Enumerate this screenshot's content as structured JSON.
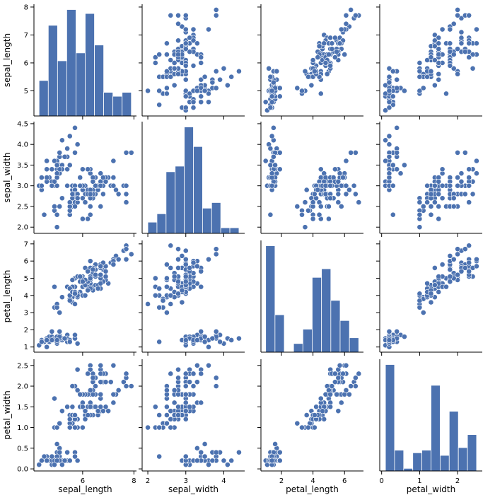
{
  "chart_data": {
    "type": "pairplot",
    "title": "",
    "variables": [
      "sepal_length",
      "sepal_width",
      "petal_length",
      "petal_width"
    ],
    "color": "#4c72b0",
    "point_edge_color": "#ffffff",
    "axes": {
      "sepal_length": {
        "label": "sepal_length",
        "lim": [
          4.1,
          8.1
        ],
        "ticks": [
          5,
          6,
          7,
          8
        ],
        "x_ticks": [
          6,
          8
        ]
      },
      "sepal_width": {
        "label": "sepal_width",
        "lim": [
          1.85,
          4.55
        ],
        "ticks": [
          2.0,
          2.5,
          3.0,
          3.5,
          4.0,
          4.5
        ],
        "x_ticks": [
          2,
          3,
          4
        ]
      },
      "petal_length": {
        "label": "petal_length",
        "lim": [
          0.7,
          7.2
        ],
        "ticks": [
          1,
          2,
          3,
          4,
          5,
          6,
          7
        ],
        "x_ticks": [
          2,
          4,
          6
        ]
      },
      "petal_width": {
        "label": "petal_width",
        "lim": [
          -0.05,
          2.65
        ],
        "ticks": [
          0.0,
          0.5,
          1.0,
          1.5,
          2.0,
          2.5
        ],
        "x_ticks": [
          0,
          1,
          2
        ]
      }
    },
    "histograms": {
      "sepal_length": {
        "edges": [
          4.3,
          4.66,
          5.02,
          5.38,
          5.74,
          6.1,
          6.46,
          6.82,
          7.18,
          7.54,
          7.9
        ],
        "counts": [
          9,
          23,
          14,
          27,
          16,
          26,
          18,
          6,
          5,
          6
        ]
      },
      "sepal_width": {
        "edges": [
          2.0,
          2.24,
          2.48,
          2.72,
          2.96,
          3.2,
          3.44,
          3.68,
          3.92,
          4.16,
          4.4
        ],
        "counts": [
          4,
          7,
          22,
          24,
          38,
          31,
          9,
          11,
          2,
          2
        ]
      },
      "petal_length": {
        "edges": [
          1.0,
          1.59,
          2.18,
          2.77,
          3.36,
          3.95,
          4.54,
          5.13,
          5.72,
          6.31,
          6.9
        ],
        "counts": [
          37,
          13,
          0,
          3,
          8,
          26,
          29,
          18,
          11,
          5
        ]
      },
      "petal_width": {
        "edges": [
          0.1,
          0.34,
          0.58,
          0.82,
          1.06,
          1.3,
          1.54,
          1.78,
          2.02,
          2.26,
          2.5
        ],
        "counts": [
          41,
          8,
          1,
          7,
          8,
          33,
          6,
          23,
          9,
          14
        ]
      }
    },
    "points": [
      [
        5.1,
        3.5,
        1.4,
        0.2
      ],
      [
        4.9,
        3.0,
        1.4,
        0.2
      ],
      [
        4.7,
        3.2,
        1.3,
        0.2
      ],
      [
        4.6,
        3.1,
        1.5,
        0.2
      ],
      [
        5.0,
        3.6,
        1.4,
        0.2
      ],
      [
        5.4,
        3.9,
        1.7,
        0.4
      ],
      [
        4.6,
        3.4,
        1.4,
        0.3
      ],
      [
        5.0,
        3.4,
        1.5,
        0.2
      ],
      [
        4.4,
        2.9,
        1.4,
        0.2
      ],
      [
        4.9,
        3.1,
        1.5,
        0.1
      ],
      [
        5.4,
        3.7,
        1.5,
        0.2
      ],
      [
        4.8,
        3.4,
        1.6,
        0.2
      ],
      [
        4.8,
        3.0,
        1.4,
        0.1
      ],
      [
        4.3,
        3.0,
        1.1,
        0.1
      ],
      [
        5.8,
        4.0,
        1.2,
        0.2
      ],
      [
        5.7,
        4.4,
        1.5,
        0.4
      ],
      [
        5.4,
        3.9,
        1.3,
        0.4
      ],
      [
        5.1,
        3.5,
        1.4,
        0.3
      ],
      [
        5.7,
        3.8,
        1.7,
        0.3
      ],
      [
        5.1,
        3.8,
        1.5,
        0.3
      ],
      [
        5.4,
        3.4,
        1.7,
        0.2
      ],
      [
        5.1,
        3.7,
        1.5,
        0.4
      ],
      [
        4.6,
        3.6,
        1.0,
        0.2
      ],
      [
        5.1,
        3.3,
        1.7,
        0.5
      ],
      [
        4.8,
        3.4,
        1.9,
        0.2
      ],
      [
        5.0,
        3.0,
        1.6,
        0.2
      ],
      [
        5.0,
        3.4,
        1.6,
        0.4
      ],
      [
        5.2,
        3.5,
        1.5,
        0.2
      ],
      [
        5.2,
        3.4,
        1.4,
        0.2
      ],
      [
        4.7,
        3.2,
        1.6,
        0.2
      ],
      [
        4.8,
        3.1,
        1.6,
        0.2
      ],
      [
        5.4,
        3.4,
        1.5,
        0.4
      ],
      [
        5.2,
        4.1,
        1.5,
        0.1
      ],
      [
        5.5,
        4.2,
        1.4,
        0.2
      ],
      [
        4.9,
        3.1,
        1.5,
        0.2
      ],
      [
        5.0,
        3.2,
        1.2,
        0.2
      ],
      [
        5.5,
        3.5,
        1.3,
        0.2
      ],
      [
        4.9,
        3.6,
        1.4,
        0.1
      ],
      [
        4.4,
        3.0,
        1.3,
        0.2
      ],
      [
        5.1,
        3.4,
        1.5,
        0.2
      ],
      [
        5.0,
        3.5,
        1.3,
        0.3
      ],
      [
        4.5,
        2.3,
        1.3,
        0.3
      ],
      [
        4.4,
        3.2,
        1.3,
        0.2
      ],
      [
        5.0,
        3.5,
        1.6,
        0.6
      ],
      [
        5.1,
        3.8,
        1.9,
        0.4
      ],
      [
        4.8,
        3.0,
        1.4,
        0.3
      ],
      [
        5.1,
        3.8,
        1.6,
        0.2
      ],
      [
        4.6,
        3.2,
        1.4,
        0.2
      ],
      [
        5.3,
        3.7,
        1.5,
        0.2
      ],
      [
        5.0,
        3.3,
        1.4,
        0.2
      ],
      [
        7.0,
        3.2,
        4.7,
        1.4
      ],
      [
        6.4,
        3.2,
        4.5,
        1.5
      ],
      [
        6.9,
        3.1,
        4.9,
        1.5
      ],
      [
        5.5,
        2.3,
        4.0,
        1.3
      ],
      [
        6.5,
        2.8,
        4.6,
        1.5
      ],
      [
        5.7,
        2.8,
        4.5,
        1.3
      ],
      [
        6.3,
        3.3,
        4.7,
        1.6
      ],
      [
        4.9,
        2.4,
        3.3,
        1.0
      ],
      [
        6.6,
        2.9,
        4.6,
        1.3
      ],
      [
        5.2,
        2.7,
        3.9,
        1.4
      ],
      [
        5.0,
        2.0,
        3.5,
        1.0
      ],
      [
        5.9,
        3.0,
        4.2,
        1.5
      ],
      [
        6.0,
        2.2,
        4.0,
        1.0
      ],
      [
        6.1,
        2.9,
        4.7,
        1.4
      ],
      [
        5.6,
        2.9,
        3.6,
        1.3
      ],
      [
        6.7,
        3.1,
        4.4,
        1.4
      ],
      [
        5.6,
        3.0,
        4.5,
        1.5
      ],
      [
        5.8,
        2.7,
        4.1,
        1.0
      ],
      [
        6.2,
        2.2,
        4.5,
        1.5
      ],
      [
        5.6,
        2.5,
        3.9,
        1.1
      ],
      [
        5.9,
        3.2,
        4.8,
        1.8
      ],
      [
        6.1,
        2.8,
        4.0,
        1.3
      ],
      [
        6.3,
        2.5,
        4.9,
        1.5
      ],
      [
        6.1,
        2.8,
        4.7,
        1.2
      ],
      [
        6.4,
        2.9,
        4.3,
        1.3
      ],
      [
        6.6,
        3.0,
        4.4,
        1.4
      ],
      [
        6.8,
        2.8,
        4.8,
        1.4
      ],
      [
        6.7,
        3.0,
        5.0,
        1.7
      ],
      [
        6.0,
        2.9,
        4.5,
        1.5
      ],
      [
        5.7,
        2.6,
        3.5,
        1.0
      ],
      [
        5.5,
        2.4,
        3.8,
        1.1
      ],
      [
        5.5,
        2.4,
        3.7,
        1.0
      ],
      [
        5.8,
        2.7,
        3.9,
        1.2
      ],
      [
        6.0,
        2.7,
        5.1,
        1.6
      ],
      [
        5.4,
        3.0,
        4.5,
        1.5
      ],
      [
        6.0,
        3.4,
        4.5,
        1.6
      ],
      [
        6.7,
        3.1,
        4.7,
        1.5
      ],
      [
        6.3,
        2.3,
        4.4,
        1.3
      ],
      [
        5.6,
        3.0,
        4.1,
        1.3
      ],
      [
        5.5,
        2.5,
        4.0,
        1.3
      ],
      [
        5.5,
        2.6,
        4.4,
        1.2
      ],
      [
        6.1,
        3.0,
        4.6,
        1.4
      ],
      [
        5.8,
        2.6,
        4.0,
        1.2
      ],
      [
        5.0,
        2.3,
        3.3,
        1.0
      ],
      [
        5.6,
        2.7,
        4.2,
        1.3
      ],
      [
        5.7,
        3.0,
        4.2,
        1.2
      ],
      [
        5.7,
        2.9,
        4.2,
        1.3
      ],
      [
        6.2,
        2.9,
        4.3,
        1.3
      ],
      [
        5.1,
        2.5,
        3.0,
        1.1
      ],
      [
        5.7,
        2.8,
        4.1,
        1.3
      ],
      [
        6.3,
        3.3,
        6.0,
        2.5
      ],
      [
        5.8,
        2.7,
        5.1,
        1.9
      ],
      [
        7.1,
        3.0,
        5.9,
        2.1
      ],
      [
        6.3,
        2.9,
        5.6,
        1.8
      ],
      [
        6.5,
        3.0,
        5.8,
        2.2
      ],
      [
        7.6,
        3.0,
        6.6,
        2.1
      ],
      [
        4.9,
        2.5,
        4.5,
        1.7
      ],
      [
        7.3,
        2.9,
        6.3,
        1.8
      ],
      [
        6.7,
        2.5,
        5.8,
        1.8
      ],
      [
        7.2,
        3.6,
        6.1,
        2.5
      ],
      [
        6.5,
        3.2,
        5.1,
        2.0
      ],
      [
        6.4,
        2.7,
        5.3,
        1.9
      ],
      [
        6.8,
        3.0,
        5.5,
        2.1
      ],
      [
        5.7,
        2.5,
        5.0,
        2.0
      ],
      [
        5.8,
        2.8,
        5.1,
        2.4
      ],
      [
        6.4,
        3.2,
        5.3,
        2.3
      ],
      [
        6.5,
        3.0,
        5.5,
        1.8
      ],
      [
        7.7,
        3.8,
        6.7,
        2.2
      ],
      [
        7.7,
        2.6,
        6.9,
        2.3
      ],
      [
        6.0,
        2.2,
        5.0,
        1.5
      ],
      [
        6.9,
        3.2,
        5.7,
        2.3
      ],
      [
        5.6,
        2.8,
        4.9,
        2.0
      ],
      [
        7.7,
        2.8,
        6.7,
        2.0
      ],
      [
        6.3,
        2.7,
        4.9,
        1.8
      ],
      [
        6.7,
        3.3,
        5.7,
        2.1
      ],
      [
        7.2,
        3.2,
        6.0,
        1.8
      ],
      [
        6.2,
        2.8,
        4.8,
        1.8
      ],
      [
        6.1,
        3.0,
        4.9,
        1.8
      ],
      [
        6.4,
        2.8,
        5.6,
        2.1
      ],
      [
        7.2,
        3.0,
        5.8,
        1.6
      ],
      [
        7.4,
        2.8,
        6.1,
        1.9
      ],
      [
        7.9,
        3.8,
        6.4,
        2.0
      ],
      [
        6.4,
        2.8,
        5.6,
        2.2
      ],
      [
        6.3,
        2.8,
        5.1,
        1.5
      ],
      [
        6.1,
        2.6,
        5.6,
        1.4
      ],
      [
        7.7,
        3.0,
        6.1,
        2.3
      ],
      [
        6.3,
        3.4,
        5.6,
        2.4
      ],
      [
        6.4,
        3.1,
        5.5,
        1.8
      ],
      [
        6.0,
        3.0,
        4.8,
        1.8
      ],
      [
        6.9,
        3.1,
        5.4,
        2.1
      ],
      [
        6.7,
        3.1,
        5.6,
        2.4
      ],
      [
        6.9,
        3.1,
        5.1,
        2.3
      ],
      [
        5.8,
        2.7,
        5.1,
        1.9
      ],
      [
        6.8,
        3.2,
        5.9,
        2.3
      ],
      [
        6.7,
        3.3,
        5.7,
        2.5
      ],
      [
        6.7,
        3.0,
        5.2,
        2.3
      ],
      [
        6.3,
        2.5,
        5.0,
        1.9
      ],
      [
        6.5,
        3.0,
        5.2,
        2.0
      ],
      [
        6.2,
        3.4,
        5.4,
        2.3
      ],
      [
        5.9,
        3.0,
        5.1,
        1.8
      ]
    ]
  }
}
